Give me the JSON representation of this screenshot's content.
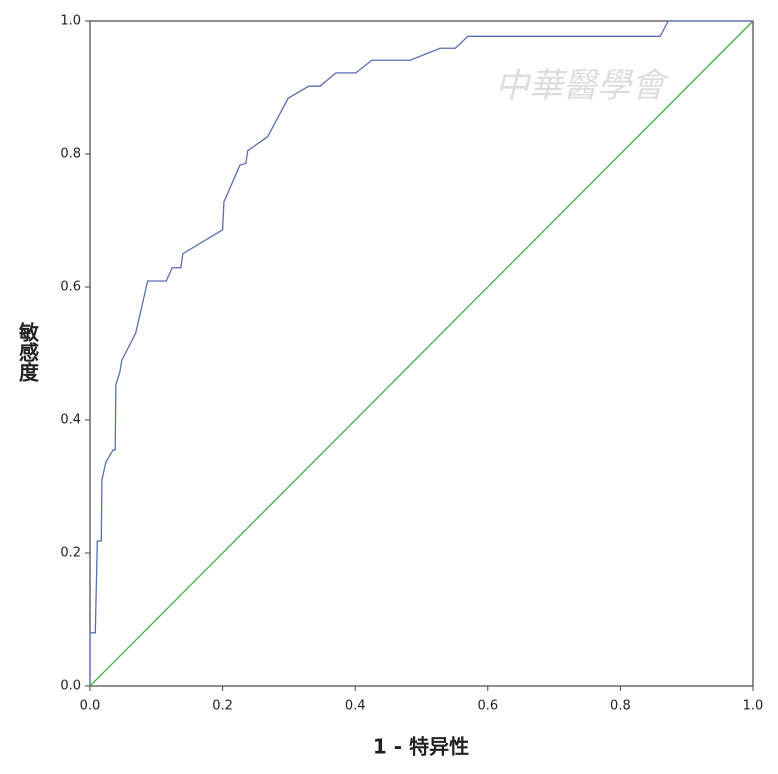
{
  "chart_data": {
    "type": "line",
    "xlabel": "1 - 特异性",
    "ylabel": "敏感度",
    "watermark": "中華醫學會",
    "xlim": [
      0,
      1
    ],
    "ylim": [
      0,
      1
    ],
    "xticks": [
      {
        "value": 0,
        "label": "0.0"
      },
      {
        "value": 0.2,
        "label": "0.2"
      },
      {
        "value": 0.4,
        "label": "0.4"
      },
      {
        "value": 0.6,
        "label": "0.6"
      },
      {
        "value": 0.8,
        "label": "0.8"
      },
      {
        "value": 1,
        "label": "1.0"
      }
    ],
    "yticks": [
      {
        "value": 0,
        "label": "0.0"
      },
      {
        "value": 0.2,
        "label": "0.2"
      },
      {
        "value": 0.4,
        "label": "0.4"
      },
      {
        "value": 0.6,
        "label": "0.6"
      },
      {
        "value": 0.8,
        "label": "0.8"
      },
      {
        "value": 1,
        "label": "1.0"
      }
    ],
    "series": [
      {
        "color": "#5a6fb0",
        "x": [
          0,
          0,
          0.008,
          0.011,
          0.017,
          0.018,
          0.024,
          0.03,
          0.035,
          0.038,
          0.039,
          0.045,
          0.048,
          0.06,
          0.069,
          0.087,
          0.115,
          0.124,
          0.137,
          0.14,
          0.2,
          0.202,
          0.226,
          0.235,
          0.238,
          0.268,
          0.299,
          0.33,
          0.347,
          0.371,
          0.401,
          0.425,
          0.483,
          0.528,
          0.551,
          0.57,
          0.86,
          0.872,
          1
        ],
        "values": [
          0,
          0.08,
          0.08,
          0.218,
          0.218,
          0.31,
          0.337,
          0.347,
          0.355,
          0.355,
          0.453,
          0.472,
          0.49,
          0.513,
          0.531,
          0.609,
          0.609,
          0.629,
          0.629,
          0.65,
          0.686,
          0.728,
          0.783,
          0.786,
          0.805,
          0.826,
          0.884,
          0.902,
          0.902,
          0.922,
          0.922,
          0.941,
          0.941,
          0.959,
          0.959,
          0.977,
          0.977,
          1,
          1
        ]
      },
      {
        "color": "#3cb043",
        "x": [
          0,
          1
        ],
        "values": [
          0,
          1
        ]
      }
    ]
  }
}
